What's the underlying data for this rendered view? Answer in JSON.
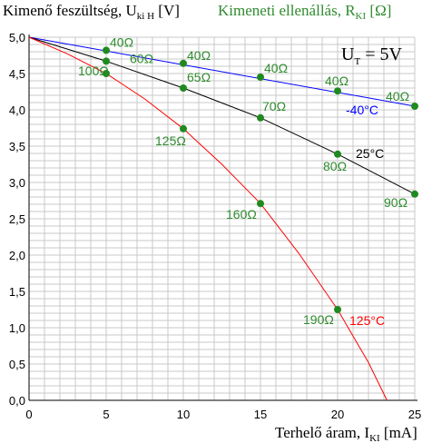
{
  "chart_data": {
    "type": "line",
    "title_y": {
      "main": "Kimenő feszültség, U",
      "sub": "ki H",
      "unit": " [V]"
    },
    "title_r": {
      "main": "Kimeneti ellenállás, R",
      "sub": "KI",
      "unit": " [Ω]"
    },
    "xlabel": {
      "main": "Terhelő áram, I",
      "sub": "KI",
      "unit": " [mA]"
    },
    "annotation": {
      "main": "U",
      "sub": "T",
      "rest": " = 5V"
    },
    "xlim": [
      0,
      25
    ],
    "ylim": [
      0,
      5
    ],
    "x_ticks": [
      "0",
      "5",
      "10",
      "15",
      "20",
      "25"
    ],
    "y_ticks": [
      "0,0",
      "0,5",
      "1,0",
      "1,5",
      "2,0",
      "2,5",
      "3,0",
      "3,5",
      "4,0",
      "4,5",
      "5,0"
    ],
    "grid": true,
    "series": [
      {
        "name": "-40°C",
        "color": "#0000ff",
        "line": [
          [
            0,
            5.0
          ],
          [
            25,
            4.05
          ]
        ],
        "points": [
          {
            "x": 5,
            "y": 4.82,
            "label": "40Ω"
          },
          {
            "x": 10,
            "y": 4.64,
            "label": "40Ω"
          },
          {
            "x": 15,
            "y": 4.45,
            "label": "40Ω"
          },
          {
            "x": 20,
            "y": 4.26,
            "label": "40Ω"
          },
          {
            "x": 25,
            "y": 4.05,
            "label": "40Ω"
          }
        ]
      },
      {
        "name": "25°C",
        "color": "#000000",
        "line": [
          [
            0,
            5.0
          ],
          [
            5,
            4.67
          ],
          [
            10,
            4.3
          ],
          [
            15,
            3.89
          ],
          [
            20,
            3.39
          ],
          [
            25,
            2.84
          ]
        ],
        "points": [
          {
            "x": 5,
            "y": 4.67,
            "label": "60Ω"
          },
          {
            "x": 10,
            "y": 4.3,
            "label": "65Ω"
          },
          {
            "x": 15,
            "y": 3.89,
            "label": "70Ω"
          },
          {
            "x": 20,
            "y": 3.39,
            "label": "80Ω"
          },
          {
            "x": 25,
            "y": 2.84,
            "label": "90Ω"
          }
        ]
      },
      {
        "name": "125°C",
        "color": "#ff0000",
        "line": [
          [
            0,
            5.0
          ],
          [
            2.5,
            4.77
          ],
          [
            5,
            4.5
          ],
          [
            7.5,
            4.15
          ],
          [
            10,
            3.74
          ],
          [
            12.5,
            3.25
          ],
          [
            15,
            2.71
          ],
          [
            17.5,
            2.02
          ],
          [
            20,
            1.25
          ],
          [
            22,
            0.52
          ],
          [
            23.2,
            0.0
          ]
        ],
        "points": [
          {
            "x": 5,
            "y": 4.5,
            "label": "100Ω"
          },
          {
            "x": 10,
            "y": 3.74,
            "label": "125Ω"
          },
          {
            "x": 15,
            "y": 2.71,
            "label": "160Ω"
          },
          {
            "x": 20,
            "y": 1.25,
            "label": "190Ω"
          }
        ]
      }
    ]
  },
  "colors": {
    "resistance_labels": "#2e8b2e",
    "markers": "#1f8a1f",
    "grid": "#c8c8c8"
  }
}
